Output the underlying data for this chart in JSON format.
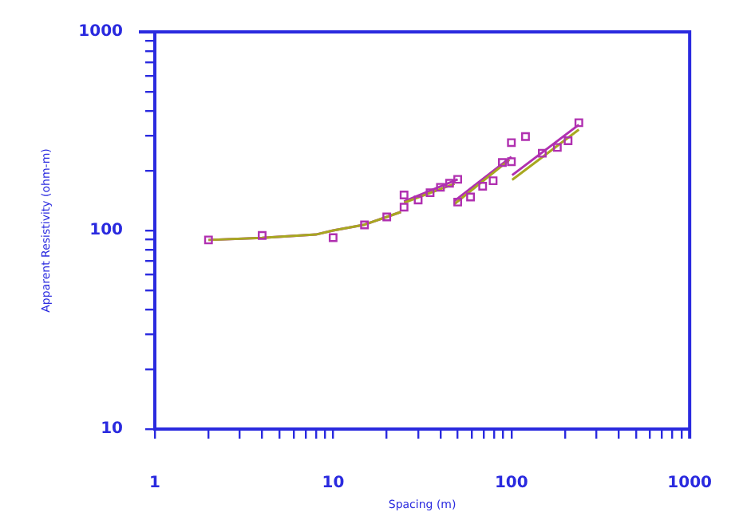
{
  "chart_data": {
    "type": "line",
    "xlabel": "Spacing (m)",
    "ylabel": "Apparent Resistivity (ohm-m)",
    "log": "xy",
    "grid": false,
    "legend": false,
    "xlim": [
      1,
      1000
    ],
    "ylim": [
      10,
      1000
    ],
    "xticks": [
      1,
      {
        "value": 2,
        "label": null
      },
      {
        "value": 3,
        "label": null
      },
      {
        "value": 4,
        "label": null
      },
      {
        "value": 5,
        "label": null
      },
      {
        "value": 6,
        "label": null
      },
      {
        "value": 7,
        "label": null
      },
      {
        "value": 8,
        "label": null
      },
      {
        "value": 9,
        "label": null
      },
      10,
      {
        "value": 20,
        "label": null
      },
      {
        "value": 30,
        "label": null
      },
      {
        "value": 40,
        "label": null
      },
      {
        "value": 50,
        "label": null
      },
      {
        "value": 60,
        "label": null
      },
      {
        "value": 70,
        "label": null
      },
      {
        "value": 80,
        "label": null
      },
      {
        "value": 90,
        "label": null
      },
      100,
      {
        "value": 200,
        "label": null
      },
      {
        "value": 300,
        "label": null
      },
      {
        "value": 400,
        "label": null
      },
      {
        "value": 500,
        "label": null
      },
      {
        "value": 600,
        "label": null
      },
      {
        "value": 700,
        "label": null
      },
      {
        "value": 800,
        "label": null
      },
      {
        "value": 900,
        "label": null
      },
      1000
    ],
    "yticks": [
      10,
      {
        "value": 20,
        "label": null
      },
      {
        "value": 30,
        "label": null
      },
      {
        "value": 40,
        "label": null
      },
      {
        "value": 50,
        "label": null
      },
      {
        "value": 60,
        "label": null
      },
      {
        "value": 70,
        "label": null
      },
      {
        "value": 80,
        "label": null
      },
      {
        "value": 90,
        "label": null
      },
      100,
      {
        "value": 200,
        "label": null
      },
      {
        "value": 300,
        "label": null
      },
      {
        "value": 400,
        "label": null
      },
      {
        "value": 500,
        "label": null
      },
      {
        "value": 600,
        "label": null
      },
      {
        "value": 700,
        "label": null
      },
      {
        "value": 800,
        "label": null
      },
      {
        "value": 900,
        "label": null
      },
      1000
    ],
    "series": [
      {
        "color": "#a8a820",
        "marker": "none",
        "line_style": "solid",
        "x": [
          2,
          4,
          8,
          10,
          15,
          20,
          24,
          null,
          25,
          48,
          null,
          48,
          97.5,
          null,
          101,
          239
        ],
        "values": [
          89.6,
          91.7,
          95.4,
          100,
          107,
          117,
          124,
          null,
          138,
          172,
          null,
          136,
          227,
          null,
          180,
          322
        ]
      },
      {
        "color": "#b030b0",
        "marker": "none",
        "line_style": "solid",
        "x": [
          2,
          4,
          8,
          10,
          15,
          20,
          24,
          null,
          25,
          50,
          null,
          48,
          100,
          null,
          101,
          239
        ],
        "values": [
          89.6,
          91.7,
          95.4,
          100,
          107,
          117,
          124,
          null,
          140,
          181,
          null,
          141,
          235,
          null,
          190,
          341
        ]
      },
      {
        "type": "scatter",
        "color": "#b030b0",
        "marker": "square",
        "x": [
          2,
          4,
          10,
          15,
          20,
          25,
          25,
          30,
          35,
          40,
          45,
          50,
          50,
          59,
          69,
          79,
          89,
          100,
          100,
          120,
          149,
          181,
          208,
          239
        ],
        "values": [
          89.6,
          94.4,
          92,
          106.7,
          117,
          131,
          151,
          142.5,
          155,
          165,
          173,
          181,
          139,
          147.5,
          167,
          178,
          220,
          277,
          222,
          297,
          245,
          262,
          283,
          349
        ]
      }
    ]
  }
}
